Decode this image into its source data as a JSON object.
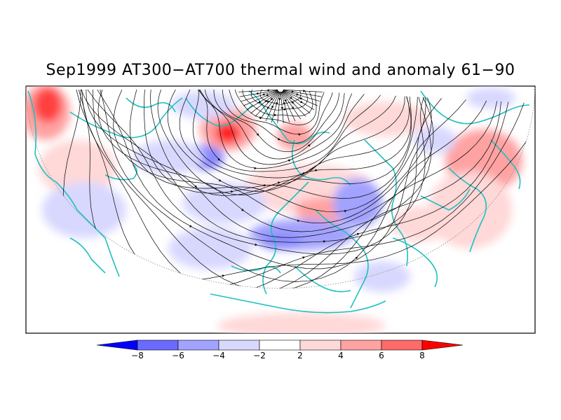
{
  "title": "Sep1999 AT300−AT700 thermal wind and anomaly 61−90",
  "colorbar": {
    "labels": [
      "−8",
      "−6",
      "−4",
      "−2",
      "2",
      "4",
      "6",
      "8"
    ],
    "colors": [
      "#0000ff",
      "#6a6aff",
      "#a2a2ff",
      "#d8d8ff",
      "#ffffff",
      "#ffd8d8",
      "#ffa2a2",
      "#ff6a6a",
      "#ff0000"
    ]
  },
  "map_colors": {
    "coastline": "#20c0c0",
    "streamline": "#000000",
    "frame": "#000000"
  }
}
